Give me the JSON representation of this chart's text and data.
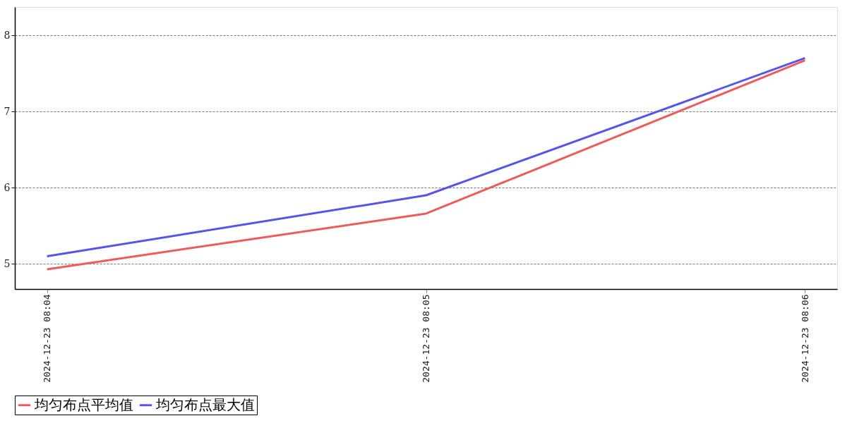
{
  "chart_data": {
    "type": "line",
    "categories": [
      "2024-12-23 08:04",
      "2024-12-23 08:05",
      "2024-12-23 08:06"
    ],
    "series": [
      {
        "name": "均匀布点平均值",
        "color": "#f05a5a",
        "values": [
          4.93,
          5.66,
          7.67
        ]
      },
      {
        "name": "均匀布点最大值",
        "color": "#5555ee",
        "values": [
          5.1,
          5.9,
          7.7
        ]
      }
    ],
    "ylim": [
      4.67,
      8.37
    ],
    "yticks": [
      5,
      6,
      7,
      8
    ],
    "grid": "y",
    "legend": "bottom",
    "marker": "none",
    "line_style": "solid"
  }
}
